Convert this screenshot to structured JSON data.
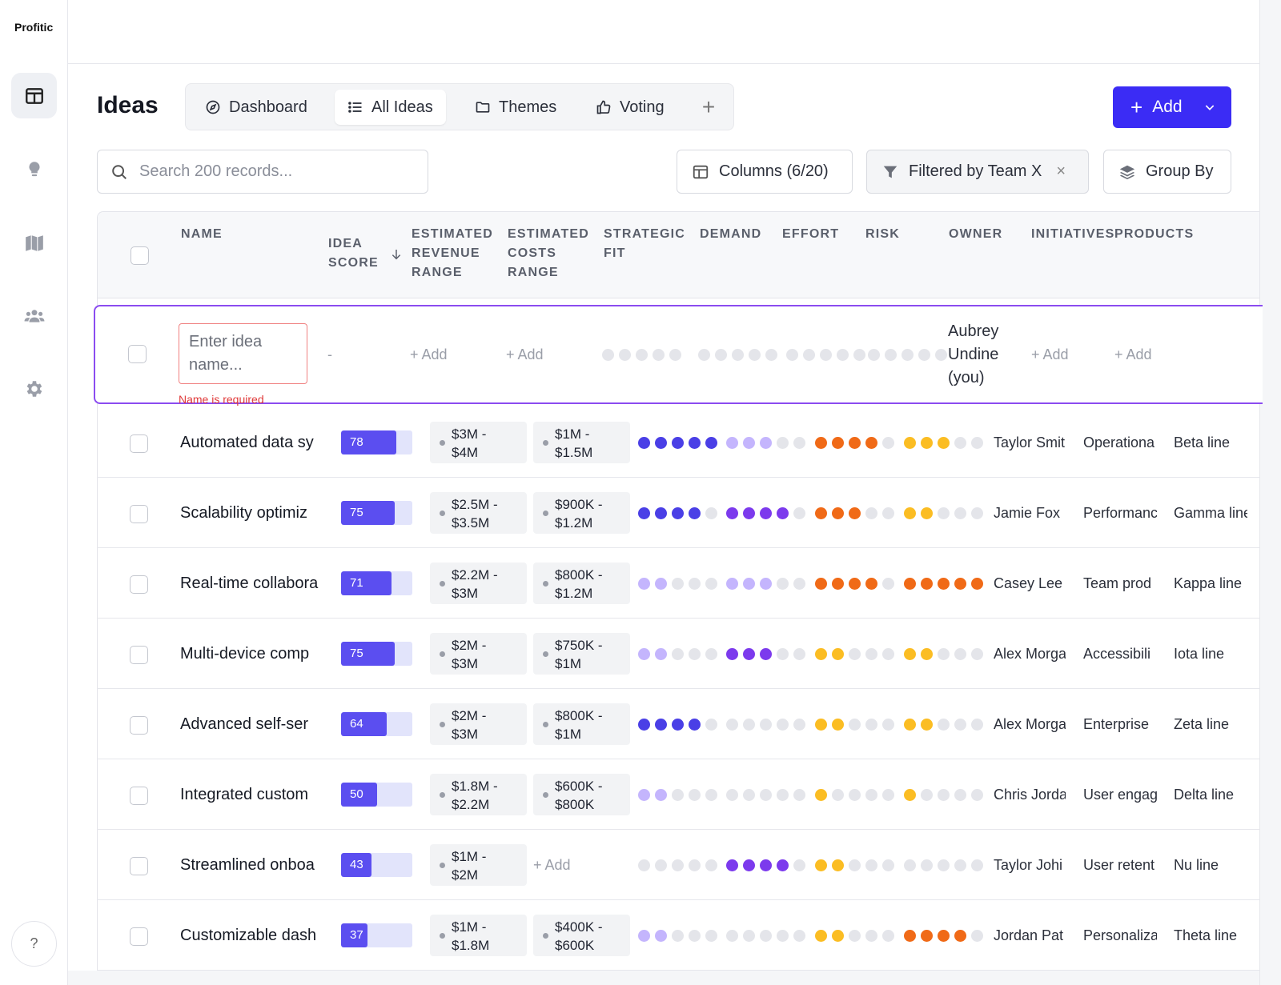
{
  "app": {
    "brand": "Profitic"
  },
  "sidebar": {
    "items": [
      "layout-icon",
      "lightbulb-icon",
      "map-icon",
      "users-icon",
      "gear-icon"
    ],
    "help": "?"
  },
  "header": {
    "title": "Ideas",
    "tabs": [
      {
        "label": "Dashboard",
        "icon": "compass-icon"
      },
      {
        "label": "All Ideas",
        "icon": "list-icon",
        "active": true
      },
      {
        "label": "Themes",
        "icon": "folder-icon"
      },
      {
        "label": "Voting",
        "icon": "thumbs-up-icon"
      }
    ],
    "tab_add": "+",
    "add_button": "Add"
  },
  "toolbar": {
    "search_placeholder": "Search 200 records...",
    "columns": "Columns (6/20)",
    "filter": "Filtered by Team X",
    "filter_clear": "×",
    "group_by": "Group By"
  },
  "table": {
    "headers": {
      "name": "NAME",
      "idea_score_1": "IDEA",
      "idea_score_2": "SCORE",
      "revenue_1": "ESTIMATED",
      "revenue_2": "REVENUE",
      "revenue_3": "RANGE",
      "costs_1": "ESTIMATED",
      "costs_2": "COSTS",
      "costs_3": "RANGE",
      "fit_1": "STRATEGIC",
      "fit_2": "FIT",
      "demand": "DEMAND",
      "effort": "EFFORT",
      "risk": "RISK",
      "owner": "OWNER",
      "initiatives": "INITIATIVES",
      "products": "PRODUCTS",
      "sort_icon": "arrow-down-icon"
    },
    "new_row": {
      "name_placeholder": "Enter idea name...",
      "error": "Name is required",
      "score": "-",
      "add_label": "+ Add",
      "owner_1": "Aubrey",
      "owner_2": "Undine",
      "owner_3": "(you)"
    },
    "colors": {
      "fit": "#4a3fe6",
      "demand_dark": "#7c3aed",
      "demand_light": "#c4b5fd",
      "effort": "#f06a17",
      "risk": "#fbbd23",
      "empty": "#e4e5ea"
    },
    "rows": [
      {
        "name": "Automated data sy",
        "score": 78,
        "rev_1": "$3M -",
        "rev_2": "$4M",
        "cost_1": "$1M -",
        "cost_2": "$1.5M",
        "fit": 5,
        "demand": 3,
        "demand_tone": "light",
        "effort": 4,
        "risk": 3,
        "owner": "Taylor Smit",
        "initiative": "Operationa",
        "product": "Beta line"
      },
      {
        "name": "Scalability optimiz",
        "score": 75,
        "rev_1": "$2.5M -",
        "rev_2": "$3.5M",
        "cost_1": "$900K -",
        "cost_2": "$1.2M",
        "fit": 4,
        "demand": 4,
        "demand_tone": "dark",
        "effort": 3,
        "risk": 2,
        "owner": "Jamie Fox",
        "initiative": "Performanc",
        "product": "Gamma line"
      },
      {
        "name": "Real-time collabora",
        "score": 71,
        "rev_1": "$2.2M -",
        "rev_2": "$3M",
        "cost_1": "$800K -",
        "cost_2": "$1.2M",
        "fit": 2,
        "fit_tone": "light",
        "demand": 3,
        "demand_tone": "light",
        "effort": 4,
        "risk": 5,
        "owner": "Casey Lee",
        "initiative": "Team prod",
        "product": "Kappa line"
      },
      {
        "name": "Multi-device comp",
        "score": 75,
        "rev_1": "$2M -",
        "rev_2": "$3M",
        "cost_1": "$750K -",
        "cost_2": "$1M",
        "fit": 2,
        "fit_tone": "light",
        "demand": 3,
        "demand_tone": "dark",
        "effort": 2,
        "effort_tone": "yellow",
        "risk": 2,
        "owner": "Alex Morga",
        "initiative": "Accessibili",
        "product": "Iota line"
      },
      {
        "name": "Advanced self-ser",
        "score": 64,
        "rev_1": "$2M -",
        "rev_2": "$3M",
        "cost_1": "$800K -",
        "cost_2": "$1M",
        "fit": 4,
        "demand": 0,
        "demand_tone": "dark",
        "effort": 2,
        "effort_tone": "yellow",
        "risk": 2,
        "owner": "Alex Morga",
        "initiative": "Enterprise",
        "product": "Zeta line"
      },
      {
        "name": "Integrated custom",
        "score": 50,
        "rev_1": "$1.8M -",
        "rev_2": "$2.2M",
        "cost_1": "$600K -",
        "cost_2": "$800K",
        "fit": 2,
        "fit_tone": "light",
        "demand": 0,
        "demand_tone": "dark",
        "effort": 1,
        "effort_tone": "yellow",
        "risk": 1,
        "owner": "Chris Jorda",
        "initiative": "User engag",
        "product": "Delta line"
      },
      {
        "name": "Streamlined onboa",
        "score": 43,
        "rev_1": "$1M -",
        "rev_2": "$2M",
        "cost_add": "+ Add",
        "fit": 0,
        "demand": 4,
        "demand_tone": "dark",
        "effort": 2,
        "effort_tone": "yellow",
        "risk": 0,
        "owner": "Taylor Johi",
        "initiative": "User retent",
        "product": "Nu line"
      },
      {
        "name": "Customizable dash",
        "score": 37,
        "rev_1": "$1M -",
        "rev_2": "$1.8M",
        "cost_1": "$400K -",
        "cost_2": "$600K",
        "fit": 2,
        "fit_tone": "light",
        "demand": 0,
        "demand_tone": "dark",
        "effort": 2,
        "effort_tone": "yellow",
        "risk": 4,
        "risk_tone": "orange",
        "owner": "Jordan Pat",
        "initiative": "Personaliza",
        "product": "Theta line"
      }
    ]
  }
}
